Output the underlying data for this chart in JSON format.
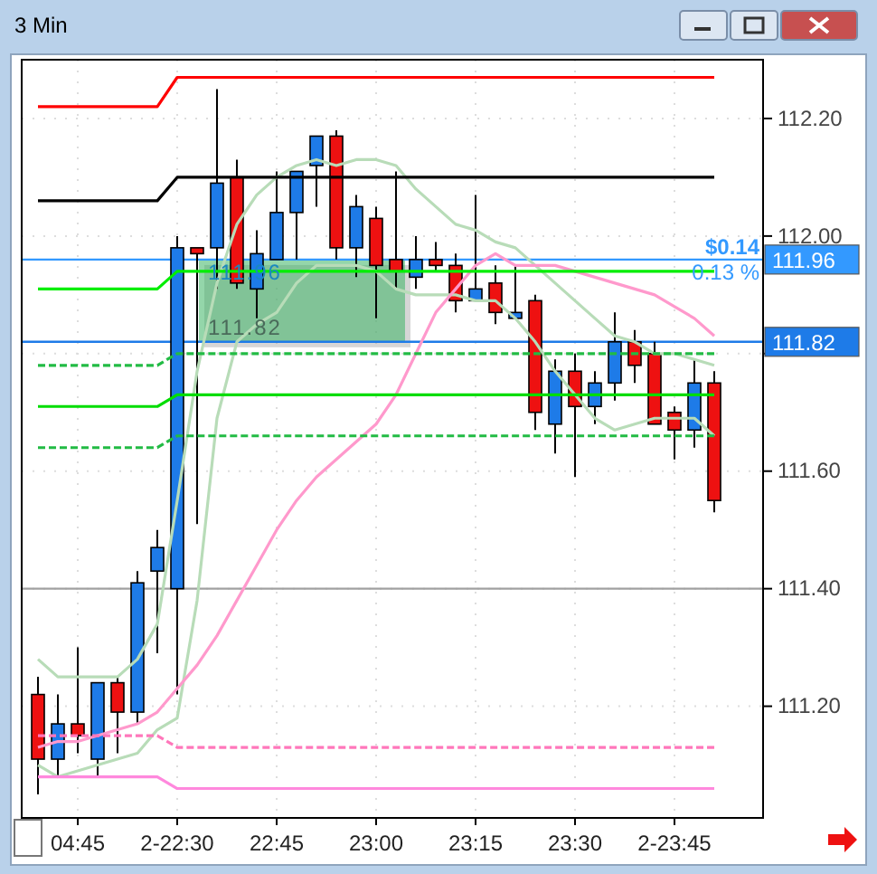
{
  "chart_data": {
    "type": "candlestick",
    "title": "3 Min",
    "categories": [
      null,
      null,
      "04:45",
      null,
      null,
      null,
      null,
      "2-22:30",
      null,
      null,
      null,
      null,
      "22:45",
      null,
      null,
      null,
      null,
      "23:00",
      null,
      null,
      null,
      null,
      "23:15",
      null,
      null,
      null,
      null,
      "23:30",
      null,
      null,
      null,
      null,
      "2-23:45",
      null,
      null
    ],
    "ohlc": [
      [
        111.22,
        111.25,
        111.05,
        111.11
      ],
      [
        111.11,
        111.22,
        111.08,
        111.17
      ],
      [
        111.17,
        111.3,
        111.12,
        111.15
      ],
      [
        111.11,
        111.24,
        111.08,
        111.24
      ],
      [
        111.24,
        111.25,
        111.12,
        111.19
      ],
      [
        111.19,
        111.43,
        111.17,
        111.41
      ],
      [
        111.43,
        111.5,
        111.29,
        111.47
      ],
      [
        111.4,
        112.0,
        111.22,
        111.98
      ],
      [
        111.98,
        111.98,
        111.51,
        111.97
      ],
      [
        111.98,
        112.25,
        111.91,
        112.09
      ],
      [
        112.1,
        112.13,
        111.91,
        111.92
      ],
      [
        111.91,
        112.01,
        111.86,
        111.97
      ],
      [
        111.96,
        112.11,
        111.96,
        112.04
      ],
      [
        112.04,
        112.11,
        111.96,
        112.11
      ],
      [
        112.12,
        112.17,
        112.05,
        112.17
      ],
      [
        112.17,
        112.18,
        111.96,
        111.98
      ],
      [
        111.98,
        112.07,
        111.93,
        112.05
      ],
      [
        112.03,
        112.05,
        111.86,
        111.95
      ],
      [
        111.96,
        112.11,
        111.91,
        111.94
      ],
      [
        111.93,
        112.0,
        111.91,
        111.96
      ],
      [
        111.96,
        111.99,
        111.94,
        111.95
      ],
      [
        111.95,
        111.97,
        111.87,
        111.89
      ],
      [
        111.89,
        112.07,
        111.89,
        111.91
      ],
      [
        111.92,
        111.95,
        111.85,
        111.87
      ],
      [
        111.86,
        111.95,
        111.86,
        111.87
      ],
      [
        111.89,
        111.9,
        111.67,
        111.7
      ],
      [
        111.68,
        111.79,
        111.63,
        111.77
      ],
      [
        111.77,
        111.8,
        111.59,
        111.71
      ],
      [
        111.71,
        111.77,
        111.68,
        111.75
      ],
      [
        111.75,
        111.87,
        111.72,
        111.82
      ],
      [
        111.82,
        111.84,
        111.75,
        111.78
      ],
      [
        111.8,
        111.82,
        111.68,
        111.68
      ],
      [
        111.7,
        111.71,
        111.62,
        111.67
      ],
      [
        111.67,
        111.79,
        111.64,
        111.75
      ],
      [
        111.75,
        111.77,
        111.53,
        111.55
      ]
    ],
    "colors": [
      "#ee1111",
      "#1e7be8",
      "#ee1111",
      "#1e7be8",
      "#ee1111",
      "#1e7be8",
      "#1e7be8",
      "#1e7be8",
      "#ee1111",
      "#1e7be8",
      "#ee1111",
      "#1e7be8",
      "#1e7be8",
      "#1e7be8",
      "#1e7be8",
      "#ee1111",
      "#1e7be8",
      "#ee1111",
      "#ee1111",
      "#1e7be8",
      "#ee1111",
      "#ee1111",
      "#1e7be8",
      "#ee1111",
      "#1e7be8",
      "#ee1111",
      "#1e7be8",
      "#ee1111",
      "#1e7be8",
      "#1e7be8",
      "#ee1111",
      "#ee1111",
      "#ee1111",
      "#1e7be8",
      "#ee1111"
    ],
    "series": [
      {
        "type": "line",
        "color": "#b8dcb8",
        "line_style": "solid",
        "values": [
          111.28,
          111.25,
          111.25,
          111.25,
          111.25,
          111.28,
          111.34,
          111.55,
          111.77,
          111.92,
          112.02,
          112.07,
          112.1,
          112.12,
          112.13,
          112.12,
          112.13,
          112.13,
          112.12,
          112.08,
          112.05,
          112.02,
          112.01,
          111.99,
          111.98,
          111.95,
          111.92,
          111.89,
          111.86,
          111.83,
          111.82,
          111.8,
          111.8,
          111.79,
          111.78
        ]
      },
      {
        "type": "line",
        "color": "#b8dcb8",
        "line_style": "solid",
        "values": [
          111.1,
          111.08,
          111.09,
          111.1,
          111.11,
          111.12,
          111.16,
          111.18,
          111.38,
          111.69,
          111.82,
          111.85,
          111.87,
          111.92,
          111.95,
          111.95,
          111.95,
          111.94,
          111.91,
          111.9,
          111.9,
          111.9,
          111.89,
          111.89,
          111.86,
          111.82,
          111.77,
          111.73,
          111.69,
          111.67,
          111.68,
          111.69,
          111.69,
          111.69,
          111.66
        ]
      },
      {
        "type": "line",
        "color": "#ff99cc",
        "line_style": "solid",
        "values": [
          111.13,
          111.14,
          111.14,
          111.15,
          111.16,
          111.17,
          111.19,
          111.23,
          111.27,
          111.32,
          111.38,
          111.44,
          111.5,
          111.55,
          111.59,
          111.62,
          111.65,
          111.68,
          111.73,
          111.8,
          111.87,
          111.91,
          111.95,
          111.97,
          111.95,
          111.95,
          111.95,
          111.94,
          111.93,
          111.92,
          111.91,
          111.9,
          111.88,
          111.86,
          111.83
        ]
      },
      {
        "type": "line",
        "color": "#ff0000",
        "line_style": "solid",
        "values": [
          112.22,
          112.22,
          112.22,
          112.22,
          112.22,
          112.22,
          112.22,
          112.27,
          112.27,
          112.27,
          112.27,
          112.27,
          112.27,
          112.27,
          112.27,
          112.27,
          112.27,
          112.27,
          112.27,
          112.27,
          112.27,
          112.27,
          112.27,
          112.27,
          112.27,
          112.27,
          112.27,
          112.27,
          112.27,
          112.27,
          112.27,
          112.27,
          112.27,
          112.27,
          112.27
        ]
      },
      {
        "type": "line",
        "color": "#000000",
        "line_style": "solid",
        "values": [
          112.06,
          112.06,
          112.06,
          112.06,
          112.06,
          112.06,
          112.06,
          112.1,
          112.1,
          112.1,
          112.1,
          112.1,
          112.1,
          112.1,
          112.1,
          112.1,
          112.1,
          112.1,
          112.1,
          112.1,
          112.1,
          112.1,
          112.1,
          112.1,
          112.1,
          112.1,
          112.1,
          112.1,
          112.1,
          112.1,
          112.1,
          112.1,
          112.1,
          112.1,
          112.1
        ]
      },
      {
        "type": "line",
        "color": "#00ee00",
        "line_style": "solid",
        "values": [
          111.91,
          111.91,
          111.91,
          111.91,
          111.91,
          111.91,
          111.91,
          111.94,
          111.94,
          111.94,
          111.94,
          111.94,
          111.94,
          111.94,
          111.94,
          111.94,
          111.94,
          111.94,
          111.94,
          111.94,
          111.94,
          111.94,
          111.94,
          111.94,
          111.94,
          111.94,
          111.94,
          111.94,
          111.94,
          111.94,
          111.94,
          111.94,
          111.94,
          111.94,
          111.94
        ]
      },
      {
        "type": "line",
        "color": "#00dd00",
        "line_style": "solid",
        "values": [
          111.71,
          111.71,
          111.71,
          111.71,
          111.71,
          111.71,
          111.71,
          111.73,
          111.73,
          111.73,
          111.73,
          111.73,
          111.73,
          111.73,
          111.73,
          111.73,
          111.73,
          111.73,
          111.73,
          111.73,
          111.73,
          111.73,
          111.73,
          111.73,
          111.73,
          111.73,
          111.73,
          111.73,
          111.73,
          111.73,
          111.73,
          111.73,
          111.73,
          111.73,
          111.73
        ]
      },
      {
        "type": "line",
        "color": "#22bb44",
        "line_style": "dashed",
        "values": [
          111.78,
          111.78,
          111.78,
          111.78,
          111.78,
          111.78,
          111.78,
          111.8,
          111.8,
          111.8,
          111.8,
          111.8,
          111.8,
          111.8,
          111.8,
          111.8,
          111.8,
          111.8,
          111.8,
          111.8,
          111.8,
          111.8,
          111.8,
          111.8,
          111.8,
          111.8,
          111.8,
          111.8,
          111.8,
          111.8,
          111.8,
          111.8,
          111.8,
          111.8,
          111.8
        ]
      },
      {
        "type": "line",
        "color": "#22bb44",
        "line_style": "dashed",
        "values": [
          111.64,
          111.64,
          111.64,
          111.64,
          111.64,
          111.64,
          111.64,
          111.66,
          111.66,
          111.66,
          111.66,
          111.66,
          111.66,
          111.66,
          111.66,
          111.66,
          111.66,
          111.66,
          111.66,
          111.66,
          111.66,
          111.66,
          111.66,
          111.66,
          111.66,
          111.66,
          111.66,
          111.66,
          111.66,
          111.66,
          111.66,
          111.66,
          111.66,
          111.66,
          111.66
        ]
      },
      {
        "type": "line",
        "color": "#ff77bb",
        "line_style": "dashed",
        "values": [
          111.15,
          111.15,
          111.15,
          111.15,
          111.15,
          111.15,
          111.15,
          111.13,
          111.13,
          111.13,
          111.13,
          111.13,
          111.13,
          111.13,
          111.13,
          111.13,
          111.13,
          111.13,
          111.13,
          111.13,
          111.13,
          111.13,
          111.13,
          111.13,
          111.13,
          111.13,
          111.13,
          111.13,
          111.13,
          111.13,
          111.13,
          111.13,
          111.13,
          111.13,
          111.13
        ]
      },
      {
        "type": "line",
        "color": "#ff88dd",
        "line_style": "solid",
        "values": [
          111.08,
          111.08,
          111.08,
          111.08,
          111.08,
          111.08,
          111.08,
          111.06,
          111.06,
          111.06,
          111.06,
          111.06,
          111.06,
          111.06,
          111.06,
          111.06,
          111.06,
          111.06,
          111.06,
          111.06,
          111.06,
          111.06,
          111.06,
          111.06,
          111.06,
          111.06,
          111.06,
          111.06,
          111.06,
          111.06,
          111.06,
          111.06,
          111.06,
          111.06,
          111.06
        ]
      }
    ],
    "ylim": [
      111.01,
      112.3
    ],
    "yticks": [
      {
        "value": 111.2,
        "label": "111.20"
      },
      {
        "value": 111.4,
        "label": "111.40"
      },
      {
        "value": 111.6,
        "label": "111.60"
      },
      {
        "value": 111.8,
        "label": null
      },
      {
        "value": 112.0,
        "label": "112.00"
      },
      {
        "value": 112.2,
        "label": "112.20"
      }
    ],
    "ref_lines": [
      {
        "axis": "y",
        "value": 111.4,
        "color": "#a0a0a0"
      },
      {
        "axis": "y",
        "value": 111.96,
        "label": "111.96",
        "color": "#3399ff"
      },
      {
        "axis": "y",
        "value": 111.82,
        "label": "111.82",
        "color": "#1e7be8"
      }
    ],
    "annotations": [
      {
        "text": "111.96",
        "y": 111.96
      },
      {
        "text": "111.82",
        "y": 111.82
      },
      "$0.14",
      "0.13 %"
    ],
    "grid": true
  }
}
